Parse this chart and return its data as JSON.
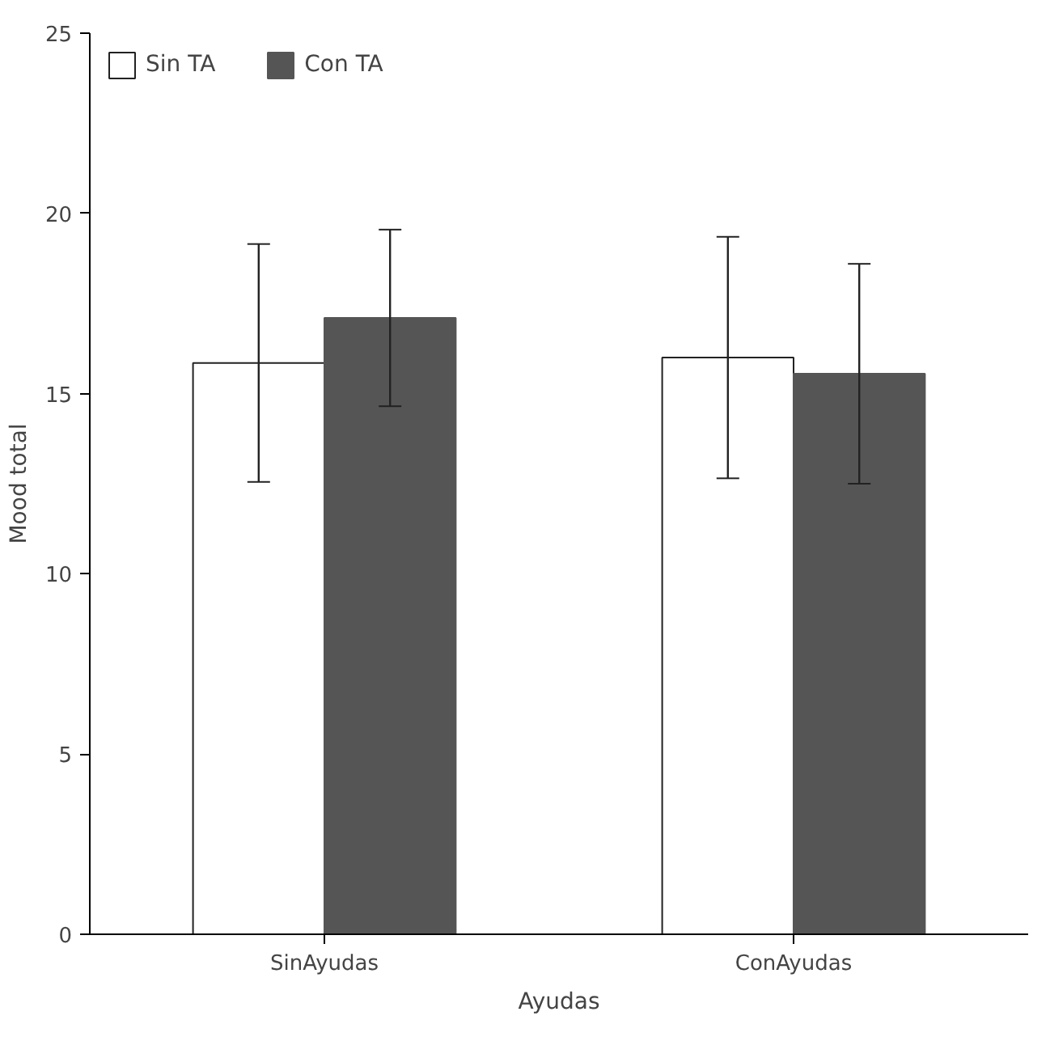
{
  "chart_data": {
    "type": "bar",
    "xlabel": "Ayudas",
    "ylabel": "Mood total",
    "categories": [
      "SinAyudas",
      "ConAyudas"
    ],
    "series": [
      {
        "name": "Sin TA",
        "color": "#ffffff",
        "values": [
          15.85,
          16.0
        ],
        "errors": [
          3.3,
          3.35
        ]
      },
      {
        "name": "Con TA",
        "color": "#555555",
        "values": [
          17.1,
          15.55
        ],
        "errors": [
          2.45,
          3.05
        ]
      }
    ],
    "ylim": [
      0,
      25
    ],
    "yticks": [
      0,
      5,
      10,
      15,
      20,
      25
    ],
    "grid": false,
    "legend": "top left"
  }
}
